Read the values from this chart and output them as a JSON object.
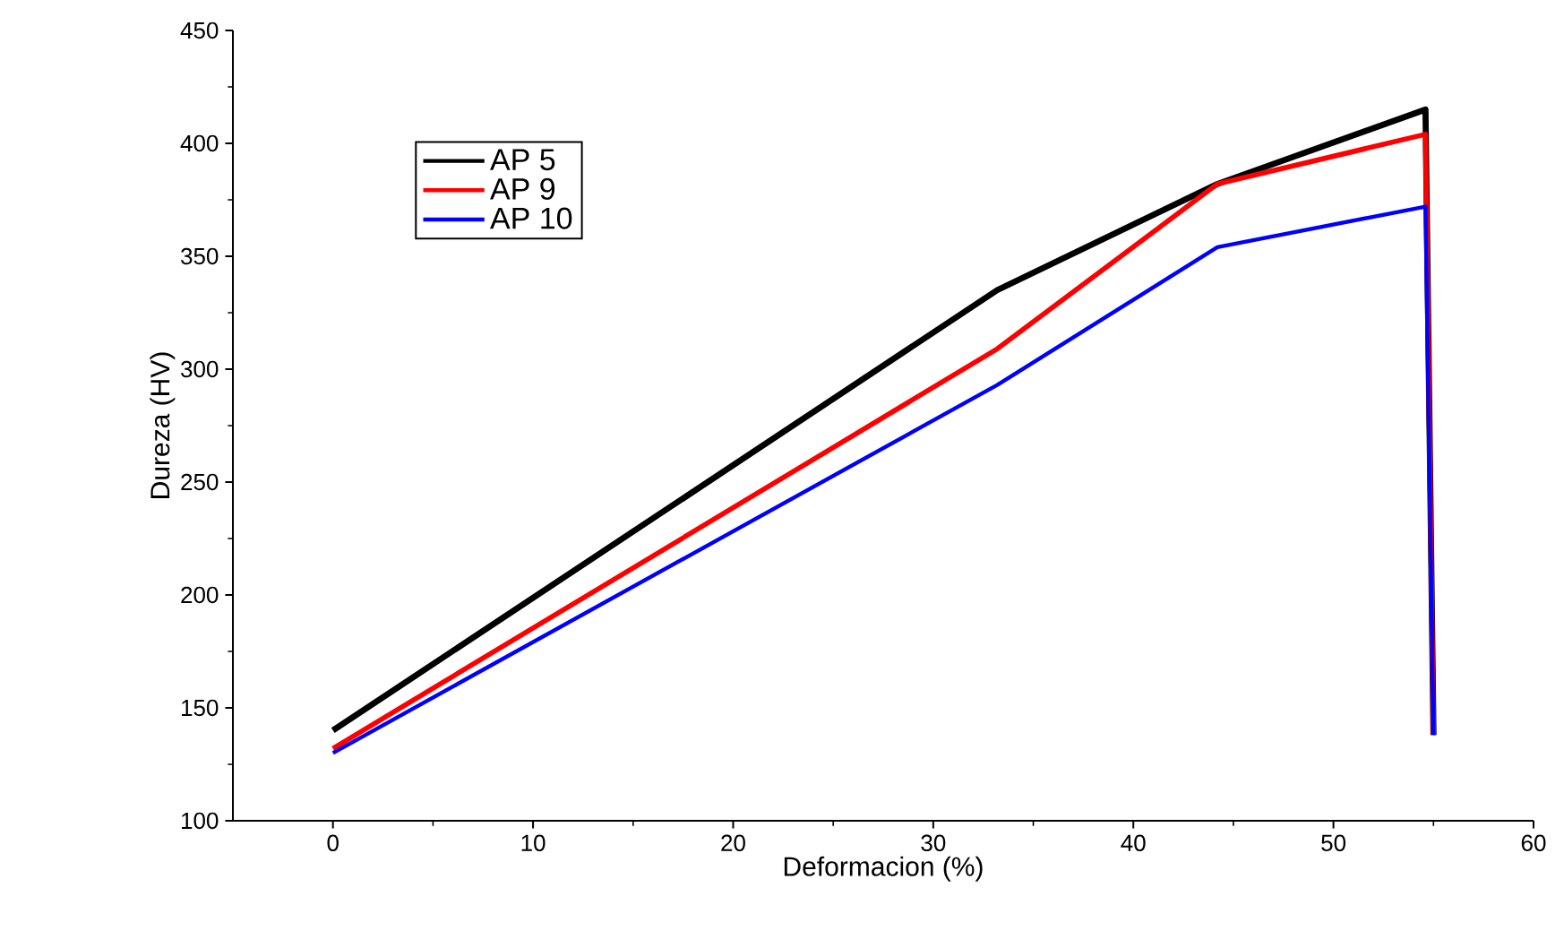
{
  "chart_data": {
    "type": "line",
    "xlabel": "Deformacion (%)",
    "ylabel": "Dureza (HV)",
    "xlim": [
      -5,
      60
    ],
    "ylim": [
      100,
      450
    ],
    "xticks": [
      0,
      10,
      20,
      30,
      40,
      50,
      60
    ],
    "yticks": [
      100,
      150,
      200,
      250,
      300,
      350,
      400,
      450
    ],
    "grid": false,
    "legend": "top left",
    "marker": "none",
    "line_style": "solid",
    "series": [
      {
        "name": "AP 5",
        "color": "#000000",
        "x": [
          0,
          33.2,
          44.2,
          54.6,
          55
        ],
        "values": [
          140,
          335,
          382,
          415,
          138
        ]
      },
      {
        "name": "AP 9",
        "color": "#ff0000",
        "x": [
          0,
          33.2,
          44.2,
          54.6,
          55
        ],
        "values": [
          132,
          309,
          382,
          404,
          138
        ]
      },
      {
        "name": "AP 10",
        "color": "#0000ff",
        "x": [
          0,
          33.2,
          44.2,
          54.6,
          55
        ],
        "values": [
          130,
          293,
          354,
          372,
          138
        ]
      }
    ]
  }
}
